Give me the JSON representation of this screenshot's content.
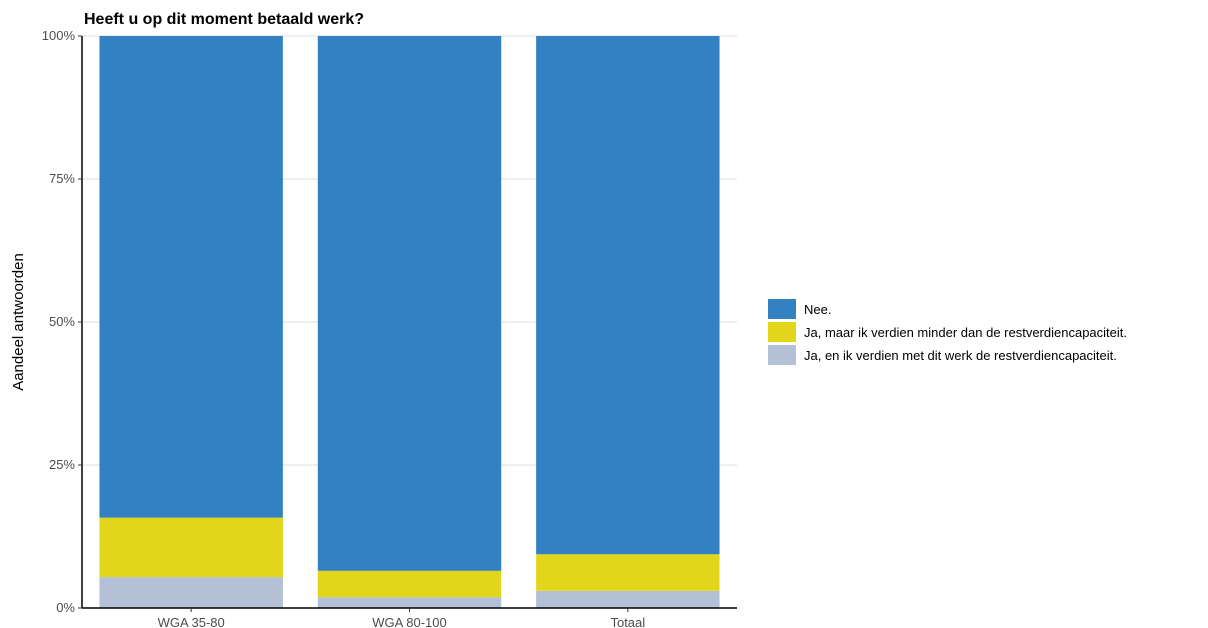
{
  "chart_data": {
    "type": "bar",
    "stacked": true,
    "title": "Heeft u op dit moment betaald werk?",
    "xlabel": "",
    "ylabel": "Aandeel antwoorden",
    "categories": [
      "WGA 35-80",
      "WGA 80-100",
      "Totaal"
    ],
    "ylim": [
      0,
      1
    ],
    "yticks": [
      0,
      0.25,
      0.5,
      0.75,
      1
    ],
    "ytick_labels": [
      "0%",
      "25%",
      "50%",
      "75%",
      "100%"
    ],
    "grid": true,
    "legend_position": "right",
    "series": [
      {
        "name": "Ja, en ik verdien met dit werk de restverdiencapaciteit.",
        "color": "#b4c0d6",
        "values": [
          0.054,
          0.019,
          0.03
        ]
      },
      {
        "name": "Ja, maar ik verdien minder dan de restverdiencapaciteit.",
        "color": "#e2d61a",
        "values": [
          0.104,
          0.046,
          0.064
        ]
      },
      {
        "name": "Nee.",
        "color": "#3381c2",
        "values": [
          0.842,
          0.935,
          0.906
        ]
      }
    ],
    "legend_order": [
      "Nee.",
      "Ja, maar ik verdien minder dan de restverdiencapaciteit.",
      "Ja, en ik verdien met dit werk de restverdiencapaciteit."
    ]
  }
}
